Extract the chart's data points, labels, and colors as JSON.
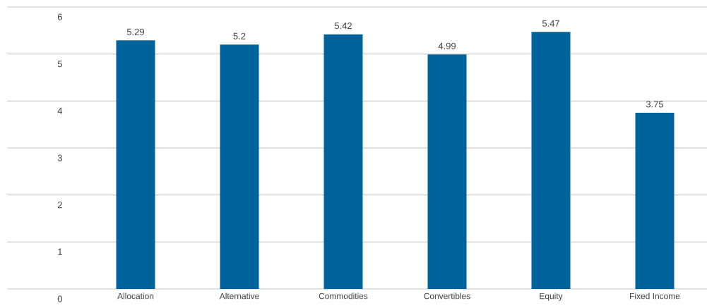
{
  "chart_data": {
    "type": "bar",
    "categories": [
      "Allocation",
      "Alternative",
      "Commodities",
      "Convertibles",
      "Equity",
      "Fixed Income"
    ],
    "values": [
      5.29,
      5.2,
      5.42,
      4.99,
      5.47,
      3.75
    ],
    "value_labels": [
      "5.29",
      "5.2",
      "5.42",
      "4.99",
      "5.47",
      "3.75"
    ],
    "color": "#00629b",
    "ylim": [
      0,
      6
    ],
    "yticks": [
      0,
      1,
      2,
      3,
      4,
      5,
      6
    ],
    "grid": "y"
  }
}
